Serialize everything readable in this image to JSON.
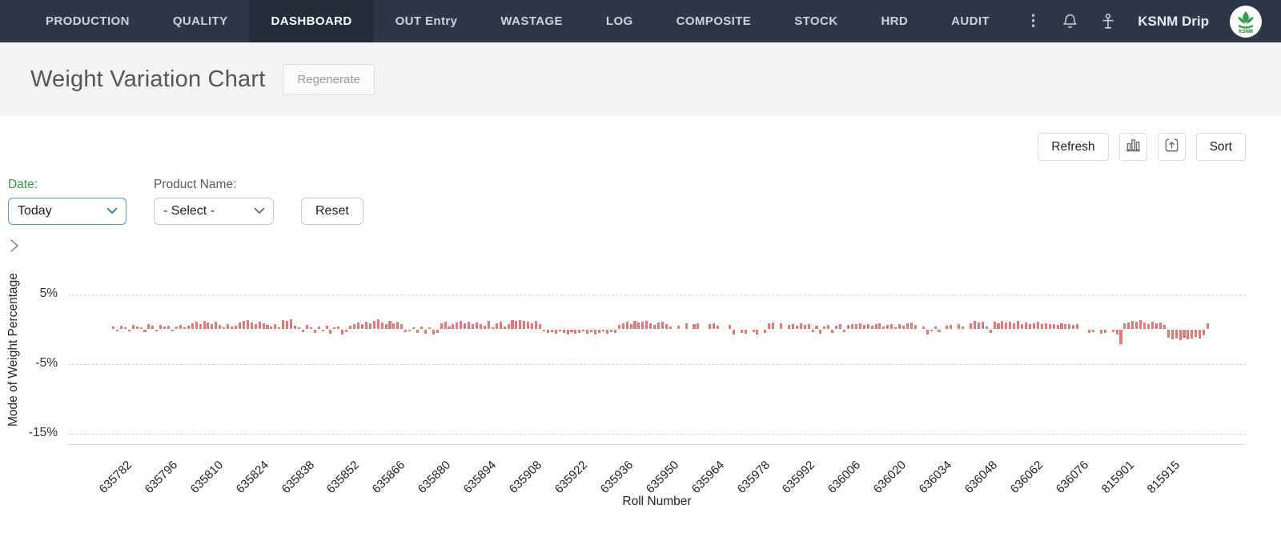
{
  "nav": {
    "items": [
      {
        "id": "production",
        "label": "PRODUCTION",
        "active": false
      },
      {
        "id": "quality",
        "label": "QUALITY",
        "active": false
      },
      {
        "id": "dashboard",
        "label": "DASHBOARD",
        "active": true
      },
      {
        "id": "out-entry",
        "label": "OUT Entry",
        "active": false
      },
      {
        "id": "wastage",
        "label": "WASTAGE",
        "active": false
      },
      {
        "id": "log",
        "label": "LOG",
        "active": false
      },
      {
        "id": "composite",
        "label": "COMPOSITE",
        "active": false
      },
      {
        "id": "stock",
        "label": "STOCK",
        "active": false
      },
      {
        "id": "hrd",
        "label": "HRD",
        "active": false
      },
      {
        "id": "audit",
        "label": "AUDIT",
        "active": false
      }
    ],
    "kebab_glyph": "⋮",
    "user_label": "KSNM Drip",
    "logo_text": "KSNM"
  },
  "header": {
    "title": "Weight Variation Chart",
    "regenerate_label": "Regenerate"
  },
  "toolbar": {
    "refresh_label": "Refresh",
    "sort_label": "Sort"
  },
  "filters": {
    "date_label": "Date:",
    "date_value": "Today",
    "product_label": "Product Name:",
    "product_value": "- Select -",
    "reset_label": "Reset"
  },
  "icons": {
    "bell": "bell-icon",
    "user": "user-icon",
    "kebab": "kebab-menu-icon",
    "bar_chart": "bar-chart-icon",
    "export": "export-icon",
    "collapse": "chevron-right-icon",
    "select_caret": "chevron-down-icon"
  },
  "colors": {
    "nav_bg": "#2d3748",
    "nav_active_bg": "#222c3b",
    "header_band_bg": "#f4f4f6",
    "bar": "#e87878",
    "date_label_green": "#3a9a4a",
    "focused_select_border": "#4f93d8",
    "gridline": "#d4d4d4"
  },
  "chart_data": {
    "type": "bar",
    "title": "Weight Variation Chart",
    "xlabel": "Roll Number",
    "ylabel": "Mode of Weight Percentage",
    "bar_color": "#e87878",
    "grid": "dashed-horizontal",
    "legend": "none",
    "yticks": [
      5,
      -5,
      -15
    ],
    "ytick_labels": [
      "5%",
      "-5%",
      "-15%"
    ],
    "ylim": [
      -16.5,
      12.8
    ],
    "xtick_labels": [
      "635782",
      "635796",
      "635810",
      "635824",
      "635838",
      "635852",
      "635866",
      "635880",
      "635894",
      "635908",
      "635922",
      "635936",
      "635950",
      "635964",
      "635978",
      "635992",
      "636006",
      "636020",
      "636034",
      "636048",
      "636062",
      "636076",
      "815901",
      "815915"
    ],
    "values_note": "per-roll weight variation %, 0 = missing bar, values estimated from pixels",
    "values": [
      0.4,
      -0.3,
      0.5,
      0.3,
      -0.2,
      0.6,
      0.4,
      0.3,
      -0.4,
      0.8,
      0.5,
      -0.3,
      0.6,
      0.4,
      0.5,
      -0.2,
      0.4,
      0.6,
      0.3,
      0.5,
      0.9,
      1.1,
      0.8,
      1.2,
      1,
      0.7,
      1.1,
      0.6,
      0.3,
      0.8,
      0.4,
      0.5,
      1,
      1.2,
      1.3,
      1,
      0.8,
      1.1,
      0.9,
      0.6,
      0.4,
      0.7,
      0.3,
      1.3,
      1.2,
      1.4,
      0.5,
      0.3,
      -0.4,
      0.6,
      0.3,
      -0.5,
      0.4,
      -0.3,
      0.5,
      -0.6,
      0.3,
      0.4,
      -0.7,
      -0.4,
      0.5,
      0.8,
      1,
      0.7,
      1.1,
      0.9,
      1.2,
      1.4,
      1,
      0.8,
      1.2,
      0.9,
      1.1,
      0.7,
      -0.4,
      -0.3,
      0.3,
      -0.5,
      0.4,
      -0.6,
      0.3,
      -0.8,
      -0.5,
      0.9,
      1.1,
      0.4,
      0.8,
      1,
      1.2,
      0.9,
      1.1,
      0.8,
      1,
      0.7,
      0.5,
      1.2,
      0.3,
      0.9,
      1.1,
      0.4,
      0.8,
      1.3,
      1.2,
      1.3,
      1.2,
      1.1,
      0.9,
      1.2,
      0.8,
      -0.3,
      -0.5,
      -0.4,
      -0.6,
      -0.3,
      -0.5,
      -0.7,
      -0.4,
      -0.6,
      -0.5,
      -0.3,
      -0.6,
      -0.4,
      -0.7,
      -0.5,
      -0.3,
      -0.6,
      -0.4,
      -0.5,
      0.6,
      0.9,
      1.1,
      0.8,
      1.2,
      1,
      1.1,
      1.2,
      0.9,
      0.6,
      1,
      1.1,
      0.8,
      0.4,
      0,
      0.5,
      0,
      0.9,
      0,
      0.8,
      0.9,
      0,
      0,
      0.7,
      0.9,
      0.5,
      0,
      0,
      0.6,
      -0.7,
      0,
      -0.5,
      -0.6,
      0,
      -0.4,
      -0.7,
      0,
      -0.5,
      0.9,
      1,
      0,
      0.9,
      0,
      0.6,
      0.8,
      0.5,
      0.9,
      0.6,
      0.7,
      -0.4,
      0.5,
      -0.6,
      0.4,
      0.6,
      -0.5,
      0.5,
      0.7,
      -0.4,
      0.6,
      0.8,
      0.7,
      0.9,
      0.6,
      0.8,
      0.5,
      0.7,
      0.9,
      0.4,
      0.6,
      0.8,
      0.3,
      0.7,
      0.5,
      0.9,
      1,
      0.6,
      0,
      0.4,
      -0.8,
      -0.3,
      0.4,
      -0.4,
      0,
      0.5,
      0.6,
      0,
      0.7,
      0.4,
      0,
      0.9,
      1.2,
      1,
      1.1,
      0.4,
      -0.5,
      1.1,
      0.9,
      1.2,
      1,
      1.1,
      0.9,
      1.2,
      0.8,
      1,
      0.7,
      0.9,
      1.1,
      0.8,
      0.9,
      0.7,
      0.8,
      0.6,
      0.9,
      0.7,
      0.8,
      0.6,
      0.7,
      0,
      0,
      -0.5,
      -0.4,
      0,
      -0.6,
      -0.5,
      0,
      -0.4,
      -0.7,
      -2.1,
      0.9,
      1,
      1.2,
      1.1,
      1.3,
      1,
      0.8,
      1.1,
      0.9,
      1,
      0.6,
      -1.2,
      -1.4,
      -1.3,
      -1.5,
      -1.2,
      -1.4,
      -1.3,
      -1.1,
      -1.3,
      -0.9,
      0.9
    ]
  }
}
